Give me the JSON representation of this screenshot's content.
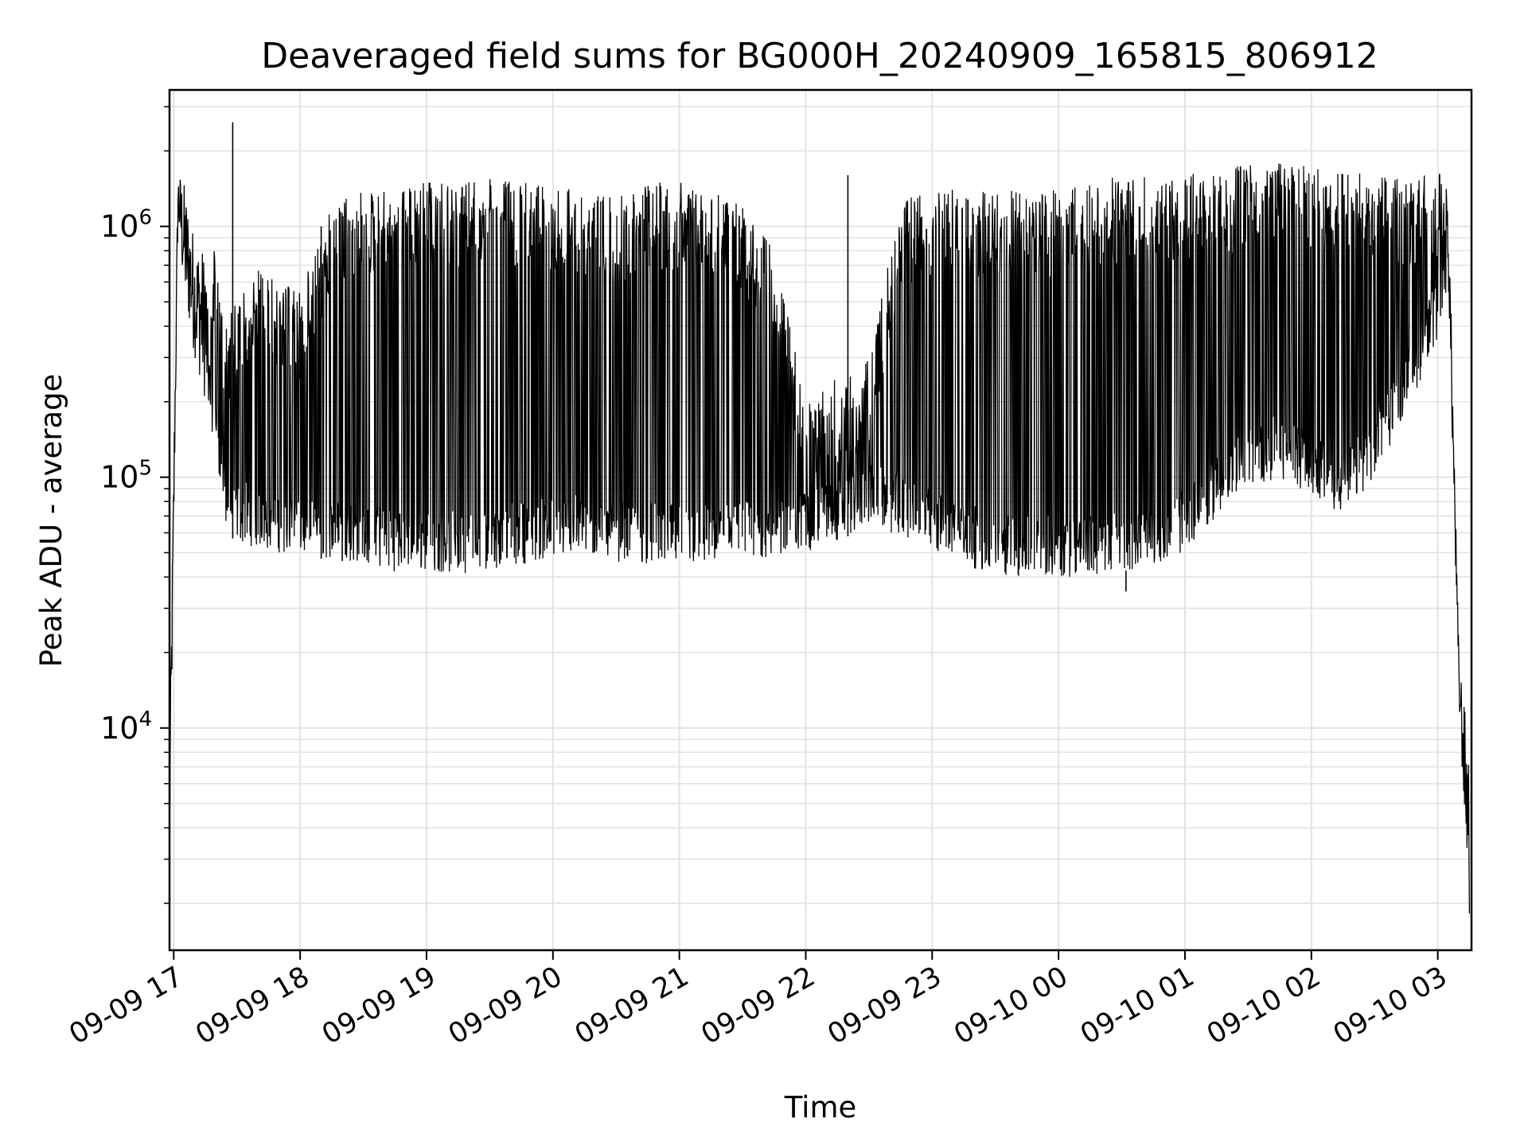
{
  "chart_data": {
    "type": "line",
    "title": "Deaveraged field sums for BG000H_20240909_165815_806912",
    "xlabel": "Time",
    "ylabel": "Peak ADU - average",
    "yscale": "log",
    "ylim": [
      1300,
      3500000
    ],
    "xlim": [
      "2024-09-09 16:58",
      "2024-09-10 03:16"
    ],
    "grid": true,
    "line_color": "#000000",
    "x_ticks": [
      {
        "value": "2024-09-09 17:00",
        "label": "09-09 17"
      },
      {
        "value": "2024-09-09 18:00",
        "label": "09-09 18"
      },
      {
        "value": "2024-09-09 19:00",
        "label": "09-09 19"
      },
      {
        "value": "2024-09-09 20:00",
        "label": "09-09 20"
      },
      {
        "value": "2024-09-09 21:00",
        "label": "09-09 21"
      },
      {
        "value": "2024-09-09 22:00",
        "label": "09-09 22"
      },
      {
        "value": "2024-09-09 23:00",
        "label": "09-09 23"
      },
      {
        "value": "2024-09-10 00:00",
        "label": "09-10 00"
      },
      {
        "value": "2024-09-10 01:00",
        "label": "09-10 01"
      },
      {
        "value": "2024-09-10 02:00",
        "label": "09-10 02"
      },
      {
        "value": "2024-09-10 03:00",
        "label": "09-10 03"
      }
    ],
    "y_ticks": [
      {
        "value": 10000,
        "base": "10",
        "exp": "4"
      },
      {
        "value": 100000,
        "base": "10",
        "exp": "5"
      },
      {
        "value": 1000000,
        "base": "10",
        "exp": "6"
      }
    ],
    "envelope": {
      "description": "values per time",
      "x": [
        "2024-09-09 16:58",
        "2024-09-09 17:02",
        "2024-09-09 17:05",
        "2024-09-09 17:10",
        "2024-09-09 17:15",
        "2024-09-09 17:20",
        "2024-09-09 17:25",
        "2024-09-09 17:30",
        "2024-09-09 17:40",
        "2024-09-09 17:50",
        "2024-09-09 18:00",
        "2024-09-09 18:15",
        "2024-09-09 18:30",
        "2024-09-09 18:45",
        "2024-09-09 19:00",
        "2024-09-09 19:15",
        "2024-09-09 19:30",
        "2024-09-09 19:45",
        "2024-09-09 20:00",
        "2024-09-09 20:15",
        "2024-09-09 20:30",
        "2024-09-09 20:45",
        "2024-09-09 21:00",
        "2024-09-09 21:15",
        "2024-09-09 21:30",
        "2024-09-09 21:45",
        "2024-09-09 22:00",
        "2024-09-09 22:15",
        "2024-09-09 22:30",
        "2024-09-09 22:45",
        "2024-09-09 23:00",
        "2024-09-09 23:15",
        "2024-09-09 23:30",
        "2024-09-09 23:45",
        "2024-09-10 00:00",
        "2024-09-10 00:15",
        "2024-09-10 00:30",
        "2024-09-10 00:45",
        "2024-09-10 01:00",
        "2024-09-10 01:15",
        "2024-09-10 01:30",
        "2024-09-10 01:45",
        "2024-09-10 02:00",
        "2024-09-10 02:15",
        "2024-09-10 02:30",
        "2024-09-10 02:45",
        "2024-09-10 03:00",
        "2024-09-10 03:05",
        "2024-09-10 03:10",
        "2024-09-10 03:15"
      ],
      "low": [
        2600,
        1000000,
        500000,
        300000,
        200000,
        130000,
        60000,
        55000,
        52000,
        50000,
        48000,
        47000,
        45000,
        42000,
        42000,
        41000,
        43000,
        45000,
        47000,
        48000,
        46000,
        45000,
        44000,
        44000,
        45000,
        47000,
        50000,
        55000,
        65000,
        58000,
        50000,
        45000,
        40000,
        40000,
        40000,
        40000,
        42000,
        45000,
        50000,
        70000,
        90000,
        100000,
        85000,
        70000,
        100000,
        180000,
        350000,
        600000,
        12000,
        1800
      ],
      "high": [
        8000,
        1700000,
        1500000,
        900000,
        800000,
        900000,
        400000,
        550000,
        700000,
        600000,
        550000,
        1200000,
        1400000,
        1450000,
        1500000,
        1500000,
        1550000,
        1500000,
        1450000,
        1400000,
        1300000,
        1500000,
        1500000,
        1400000,
        1200000,
        800000,
        200000,
        250000,
        300000,
        1300000,
        1400000,
        1400000,
        1400000,
        1400000,
        1400000,
        1500000,
        1600000,
        1600000,
        1600000,
        1700000,
        1800000,
        1850000,
        1800000,
        1700000,
        1700000,
        1500000,
        1700000,
        1400000,
        20000,
        8000
      ],
      "spikes": [
        {
          "x": "2024-09-09 17:28",
          "y": 2600000
        },
        {
          "x": "2024-09-09 18:10",
          "y": 1000000
        },
        {
          "x": "2024-09-09 18:20",
          "y": 1100000
        },
        {
          "x": "2024-09-09 22:20",
          "y": 1600000
        },
        {
          "x": "2024-09-10 00:32",
          "y": 35000
        }
      ]
    }
  }
}
